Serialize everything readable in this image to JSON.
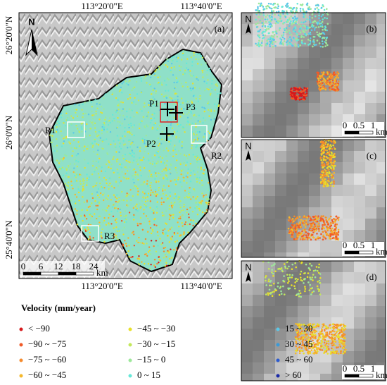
{
  "map": {
    "label": "(a)",
    "north": "N",
    "lon_labels": [
      "113°20'0\"E",
      "113°40'0\"E"
    ],
    "lat_labels": [
      "26°20'0\"N",
      "26°0'0\"N",
      "25°40'0\"N"
    ],
    "points": [
      "P1",
      "P2",
      "P3"
    ],
    "regions": [
      "R1",
      "R2",
      "R3"
    ],
    "scale_ticks": [
      "0",
      "6",
      "12",
      "18",
      "24"
    ],
    "scale_unit": "km"
  },
  "insets": [
    {
      "label": "(b)",
      "north": "N",
      "scale_ticks": [
        "0",
        "0.5",
        "1"
      ],
      "scale_unit": "km"
    },
    {
      "label": "(c)",
      "north": "N",
      "scale_ticks": [
        "0",
        "0.5",
        "1"
      ],
      "scale_unit": "km"
    },
    {
      "label": "(d)",
      "north": "N",
      "scale_ticks": [
        "0",
        "0.5",
        "1"
      ],
      "scale_unit": "km"
    }
  ],
  "legend": {
    "title": "Velocity (mm/year)",
    "items": [
      {
        "label": "< −90",
        "color": "#d7191c"
      },
      {
        "label": "−90 ~ −75",
        "color": "#f05a28"
      },
      {
        "label": "−75 ~ −60",
        "color": "#f58a2c"
      },
      {
        "label": "−60 ~ −45",
        "color": "#f5b82c"
      },
      {
        "label": "−45 ~ −30",
        "color": "#e8e02a"
      },
      {
        "label": "−30 ~ −15",
        "color": "#c3e85a"
      },
      {
        "label": "−15 ~ 0",
        "color": "#9de89a"
      },
      {
        "label": "0 ~ 15",
        "color": "#66e8d8"
      },
      {
        "label": "15 ~ 30",
        "color": "#5cc8e8"
      },
      {
        "label": "30 ~ 45",
        "color": "#3a9ad8"
      },
      {
        "label": "45 ~ 60",
        "color": "#2a5ad0"
      },
      {
        "label": "> 60",
        "color": "#1a2aa8"
      }
    ]
  }
}
